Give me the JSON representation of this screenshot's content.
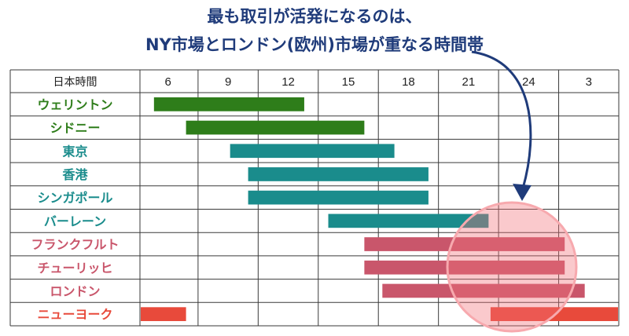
{
  "headline": {
    "line1": "最も取引が活発になるのは、",
    "line2": "NY市場とロンドン(欧州)市場が重なる時間帯"
  },
  "chart_data": {
    "type": "bar",
    "orientation": "horizontal-range",
    "corner_label": "日本時間",
    "x_ticks": [
      "6",
      "9",
      "12",
      "15",
      "18",
      "21",
      "24",
      "3"
    ],
    "x_range_hours": [
      4.6,
      28.5
    ],
    "grid": true,
    "markets": [
      {
        "name": "ウェリントン",
        "start": 5.3,
        "end": 12.8,
        "color": "#2e7d1a",
        "label_color": "#2e7d1a"
      },
      {
        "name": "シドニー",
        "start": 6.9,
        "end": 15.8,
        "color": "#2e7d1a",
        "label_color": "#2e7d1a"
      },
      {
        "name": "東京",
        "start": 9.1,
        "end": 17.3,
        "color": "#1a8c8c",
        "label_color": "#1a8c8c"
      },
      {
        "name": "香港",
        "start": 10.0,
        "end": 19.0,
        "color": "#1a8c8c",
        "label_color": "#1a8c8c"
      },
      {
        "name": "シンガポール",
        "start": 10.0,
        "end": 19.0,
        "color": "#1a8c8c",
        "label_color": "#1a8c8c"
      },
      {
        "name": "バーレーン",
        "start": 14.0,
        "end": 22.0,
        "color": "#1a8c8c",
        "label_color": "#1a8c8c"
      },
      {
        "name": "フランクフルト",
        "start": 15.8,
        "end": 25.8,
        "color": "#c9566b",
        "label_color": "#c9566b"
      },
      {
        "name": "チューリッヒ",
        "start": 15.8,
        "end": 25.8,
        "color": "#c9566b",
        "label_color": "#c9566b"
      },
      {
        "name": "ロンドン",
        "start": 16.7,
        "end": 26.8,
        "color": "#c9566b",
        "label_color": "#c9566b"
      },
      {
        "name": "ニューヨーク",
        "segments": [
          [
            4.6,
            6.9
          ],
          [
            22.1,
            28.5
          ]
        ],
        "color": "#e84a3b",
        "label_color": "#e84a3b"
      }
    ],
    "highlight": {
      "color": "#f2707a",
      "stroke": "#f7a9ae"
    },
    "arrow_color": "#1f3b7a"
  }
}
